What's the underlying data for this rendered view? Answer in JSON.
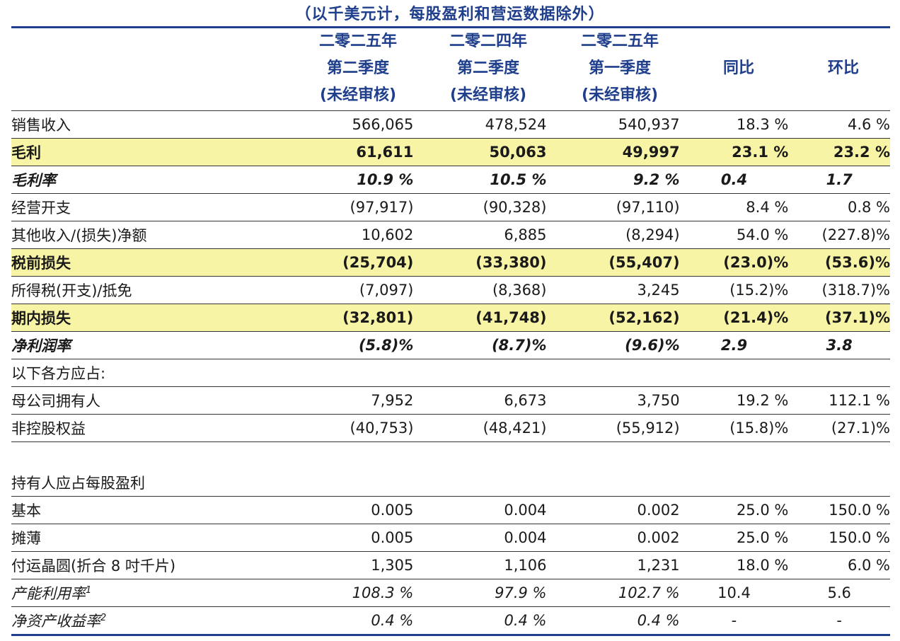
{
  "caption": "（以千美元计，每股盈利和营运数据除外）",
  "header": {
    "col1": [
      "二零二五年",
      "第二季度",
      "(未经审核)"
    ],
    "col2": [
      "二零二四年",
      "第二季度",
      "(未经审核)"
    ],
    "col3": [
      "二零二五年",
      "第一季度",
      "(未经审核)"
    ],
    "col4": "同比",
    "col5": "环比"
  },
  "rows": {
    "sales": [
      "销售收入",
      "566,065",
      "478,524",
      "540,937",
      "18.3 %",
      "4.6 %"
    ],
    "gross_profit": [
      "毛利",
      "61,611",
      "50,063",
      "49,997",
      "23.1 %",
      "23.2 %"
    ],
    "gross_margin": [
      "毛利率",
      "10.9 %",
      "10.5 %",
      "9.2 %",
      "0.4",
      "1.7"
    ],
    "opex": [
      "经营开支",
      "(97,917)",
      "(90,328)",
      "(97,110)",
      "8.4 %",
      "0.8 %"
    ],
    "other_income": [
      "其他收入/(损失)净额",
      "10,602",
      "6,885",
      "(8,294)",
      "54.0 %",
      "(227.8)%"
    ],
    "pretax_loss": [
      "税前损失",
      "(25,704)",
      "(33,380)",
      "(55,407)",
      "(23.0)%",
      "(53.6)%"
    ],
    "income_tax": [
      "所得税(开支)/抵免",
      "(7,097)",
      "(8,368)",
      "3,245",
      "(15.2)%",
      "(318.7)%"
    ],
    "period_loss": [
      "期内损失",
      "(32,801)",
      "(41,748)",
      "(52,162)",
      "(21.4)%",
      "(37.1)%"
    ],
    "net_margin": [
      "净利润率",
      "(5.8)%",
      "(8.7)%",
      "(9.6)%",
      "2.9",
      "3.8"
    ],
    "attributable": [
      "以下各方应占:"
    ],
    "parent": [
      "母公司拥有人",
      "7,952",
      "6,673",
      "3,750",
      "19.2 %",
      "112.1 %"
    ],
    "nci": [
      "非控股权益",
      "(40,753)",
      "(48,421)",
      "(55,912)",
      "(15.8)%",
      "(27.1)%"
    ],
    "eps_title": [
      "持有人应占每股盈利"
    ],
    "basic": [
      "基本",
      "0.005",
      "0.004",
      "0.002",
      "25.0 %",
      "150.0 %"
    ],
    "diluted": [
      "摊薄",
      "0.005",
      "0.004",
      "0.002",
      "25.0 %",
      "150.0 %"
    ],
    "wafers": [
      "付运晶圆(折合 8 吋千片)",
      "1,305",
      "1,106",
      "1,231",
      "18.0 %",
      "6.0 %"
    ],
    "utilization": [
      "产能利用率",
      "108.3 %",
      "97.9 %",
      "102.7 %",
      "10.4",
      "5.6"
    ],
    "roe": [
      "净资产收益率",
      "0.4 %",
      "0.4 %",
      "0.4 %",
      "-",
      "-"
    ]
  },
  "footnotes": {
    "utilization_mark": "1",
    "roe_mark": "2"
  }
}
